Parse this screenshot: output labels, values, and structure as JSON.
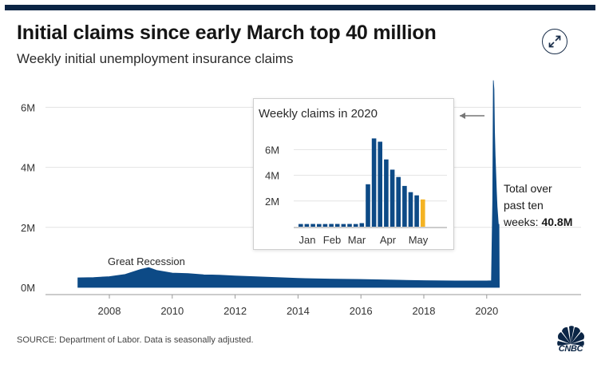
{
  "header": {
    "title": "Initial claims since early March top 40 million",
    "subtitle": "Weekly initial unemployment insurance claims",
    "expand_icon": "expand-icon"
  },
  "footer": {
    "source": "SOURCE: Department of Labor. Data is seasonally adjusted.",
    "logo_text": "CNBC",
    "logo_icon": "cnbc-peacock-icon"
  },
  "colors": {
    "bar": "#0d4a86",
    "highlight": "#f4b323",
    "top_bar": "#0b2545",
    "grid": "#e3e3e3"
  },
  "annotations": {
    "recession": "Great Recession",
    "total_prefix_1": "Total over",
    "total_prefix_2": "past ten",
    "total_prefix_3": "weeks: ",
    "total_value": "40.8M"
  },
  "chart_data": [
    {
      "type": "area",
      "title": "Initial claims since early March top 40 million",
      "subtitle": "Weekly initial unemployment insurance claims",
      "xlabel": "",
      "ylabel": "",
      "x_ticks": [
        "2008",
        "2010",
        "2012",
        "2014",
        "2016",
        "2018",
        "2020"
      ],
      "y_ticks": [
        "0M",
        "2M",
        "4M",
        "6M"
      ],
      "ylim": [
        0,
        7000000
      ],
      "xlim": [
        2006,
        2023
      ],
      "grid": true,
      "series": [
        {
          "name": "",
          "x": [
            2007.0,
            2007.5,
            2008.0,
            2008.5,
            2009.0,
            2009.25,
            2009.5,
            2010.0,
            2010.5,
            2011.0,
            2011.5,
            2012.0,
            2013.0,
            2014.0,
            2015.0,
            2016.0,
            2017.0,
            2018.0,
            2019.0,
            2020.0,
            2020.15,
            2020.19,
            2020.21,
            2020.23,
            2020.25,
            2020.27,
            2020.29,
            2020.31,
            2020.33,
            2020.35,
            2020.37,
            2020.39,
            2020.4
          ],
          "values": [
            320000,
            330000,
            360000,
            430000,
            600000,
            660000,
            570000,
            480000,
            460000,
            420000,
            410000,
            380000,
            340000,
            300000,
            280000,
            265000,
            245000,
            225000,
            215000,
            215000,
            220000,
            2900000,
            6900000,
            6600000,
            5200000,
            4400000,
            3800000,
            3200000,
            2700000,
            2400000,
            2100000,
            2100000,
            0
          ]
        }
      ]
    },
    {
      "type": "bar",
      "title": "Weekly claims in 2020",
      "x_ticks": [
        "Jan",
        "Feb",
        "Mar",
        "Apr",
        "May"
      ],
      "y_ticks": [
        "2M",
        "4M",
        "6M"
      ],
      "ylim": [
        0,
        7500000
      ],
      "grid": true,
      "values": [
        212000,
        214000,
        220000,
        210000,
        212000,
        216000,
        215000,
        211000,
        217000,
        212000,
        282000,
        3307000,
        6867000,
        6615000,
        5237000,
        4442000,
        3867000,
        3176000,
        2687000,
        2438000,
        2123000
      ],
      "highlight_index": 20
    }
  ]
}
